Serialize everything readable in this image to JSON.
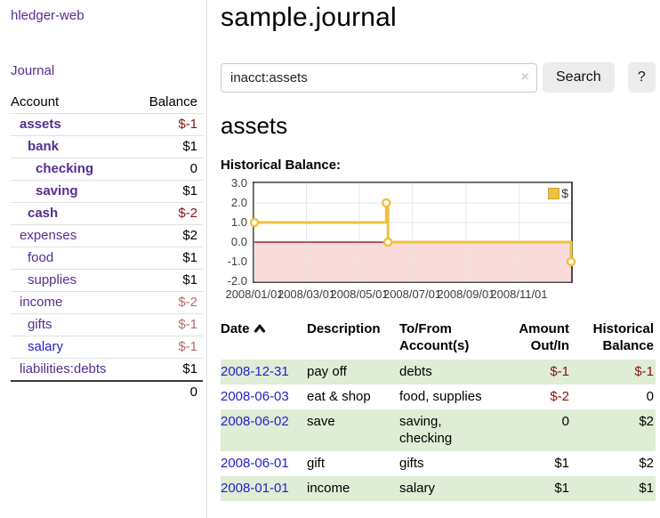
{
  "app": {
    "brand": "hledger-web",
    "nav_journal": "Journal"
  },
  "sidebar": {
    "accounts_header": {
      "account": "Account",
      "balance": "Balance"
    },
    "accounts": [
      {
        "label": "assets",
        "depth": 1,
        "bold": true,
        "balance": "$-1"
      },
      {
        "label": "bank",
        "depth": 2,
        "bold": true,
        "balance": "$1"
      },
      {
        "label": "checking",
        "depth": 3,
        "bold": true,
        "balance": "0"
      },
      {
        "label": "saving",
        "depth": 3,
        "bold": true,
        "balance": "$1"
      },
      {
        "label": "cash",
        "depth": 2,
        "bold": true,
        "balance": "$-2"
      },
      {
        "label": "expenses",
        "depth": 1,
        "bold": false,
        "balance": "$2"
      },
      {
        "label": "food",
        "depth": 2,
        "bold": false,
        "balance": "$1"
      },
      {
        "label": "supplies",
        "depth": 2,
        "bold": false,
        "balance": "$1"
      },
      {
        "label": "income",
        "depth": 1,
        "bold": false,
        "balance": "$-2"
      },
      {
        "label": "gifts",
        "depth": 2,
        "bold": false,
        "balance": "$-1"
      },
      {
        "label": "salary",
        "depth": 2,
        "bold": false,
        "balance": "$-1",
        "blue": true
      },
      {
        "label": "liabilities:debts",
        "depth": 1,
        "bold": false,
        "balance": "$1"
      }
    ],
    "total": "0"
  },
  "header": {
    "title": "sample.journal"
  },
  "search": {
    "value": "inacct:assets",
    "clear_icon": "×",
    "button": "Search",
    "help_button": "?"
  },
  "main": {
    "account_title": "assets",
    "chart_label": "Historical Balance:"
  },
  "chart_data": {
    "type": "line",
    "title": "Historical Balance",
    "steps": true,
    "series": [
      {
        "name": "$",
        "color": "#edc240",
        "points": [
          [
            "2008-01-01",
            1
          ],
          [
            "2008-06-01",
            2
          ],
          [
            "2008-06-03",
            0
          ],
          [
            "2008-12-31",
            -1
          ]
        ]
      }
    ],
    "xlim": [
      "2008-01-01",
      "2008-12-31"
    ],
    "ylim": [
      -2,
      3
    ],
    "x_ticks": [
      "2008/01/01",
      "2008/03/01",
      "2008/05/01",
      "2008/07/01",
      "2008/09/01",
      "2008/11/01"
    ],
    "y_ticks": [
      3.0,
      2.0,
      1.0,
      0.0,
      -1.0,
      -2.0
    ],
    "legend_position": "top-right",
    "grid": true,
    "negative_region_color": "#fbdada",
    "zero_line_color": "#8b0000",
    "grid_color": "#e7e7e7"
  },
  "register": {
    "headers": {
      "date": "Date",
      "description": "Description",
      "accounts": "To/From Account(s)",
      "amount": "Amount Out/In",
      "balance": "Historical Balance"
    },
    "rows": [
      {
        "date": "2008-12-31",
        "description": "pay off",
        "accounts": "debts",
        "amount": "$-1",
        "balance": "$-1"
      },
      {
        "date": "2008-06-03",
        "description": "eat & shop",
        "accounts": "food, supplies",
        "amount": "$-2",
        "balance": "0"
      },
      {
        "date": "2008-06-02",
        "description": "save",
        "accounts": "saving, checking",
        "amount": "0",
        "balance": "$2"
      },
      {
        "date": "2008-06-01",
        "description": "gift",
        "accounts": "gifts",
        "amount": "$1",
        "balance": "$2"
      },
      {
        "date": "2008-01-01",
        "description": "income",
        "accounts": "salary",
        "amount": "$1",
        "balance": "$1"
      }
    ]
  },
  "colors": {
    "accent_purple": "#552d90",
    "link_blue": "#2222cc",
    "negative_strong": "#8b1212",
    "negative_soft": "#b36b6b",
    "row_green": "#dfecd6",
    "chart_line": "#edc240"
  }
}
